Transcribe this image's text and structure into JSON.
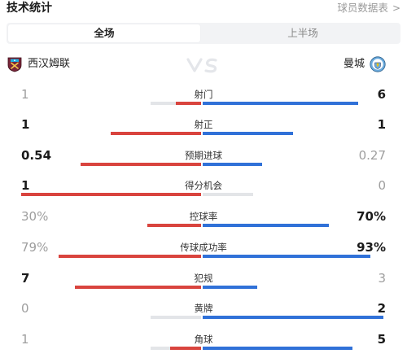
{
  "header": {
    "title": "技术统计",
    "link_label": "球员数据表",
    "link_chevron": ">"
  },
  "tabs": [
    {
      "label": "全场",
      "active": true
    },
    {
      "label": "上半场",
      "active": false
    }
  ],
  "teams": {
    "home": {
      "name": "西汉姆联",
      "crest_icon": "west-ham-crest-icon",
      "color": "#7a263a"
    },
    "away": {
      "name": "曼城",
      "crest_icon": "man-city-crest-icon",
      "color": "#6cabdd"
    },
    "vs_icon": "vs-icon"
  },
  "colors": {
    "home_bar": "#d9443e",
    "away_bar": "#3071d8",
    "track": "#e3e5e8"
  },
  "stats": [
    {
      "label": "射门",
      "home": "1",
      "away": "6",
      "home_frac": 0.14,
      "away_frac": 0.86,
      "winner": "away"
    },
    {
      "label": "射正",
      "home": "1",
      "away": "1",
      "home_frac": 0.5,
      "away_frac": 0.5,
      "winner": "both"
    },
    {
      "label": "预期进球",
      "home": "0.54",
      "away": "0.27",
      "home_frac": 0.67,
      "away_frac": 0.33,
      "winner": "home"
    },
    {
      "label": "得分机会",
      "home": "1",
      "away": "0",
      "home_frac": 1.0,
      "away_frac": 0.0,
      "winner": "home"
    },
    {
      "label": "控球率",
      "home": "30%",
      "away": "70%",
      "home_frac": 0.3,
      "away_frac": 0.7,
      "winner": "away"
    },
    {
      "label": "传球成功率",
      "home": "79%",
      "away": "93%",
      "home_frac": 0.79,
      "away_frac": 0.93,
      "winner": "away"
    },
    {
      "label": "犯规",
      "home": "7",
      "away": "3",
      "home_frac": 0.7,
      "away_frac": 0.3,
      "winner": "home"
    },
    {
      "label": "黄牌",
      "home": "0",
      "away": "2",
      "home_frac": 0.0,
      "away_frac": 1.0,
      "winner": "away"
    },
    {
      "label": "角球",
      "home": "1",
      "away": "5",
      "home_frac": 0.17,
      "away_frac": 0.83,
      "winner": "away"
    }
  ]
}
